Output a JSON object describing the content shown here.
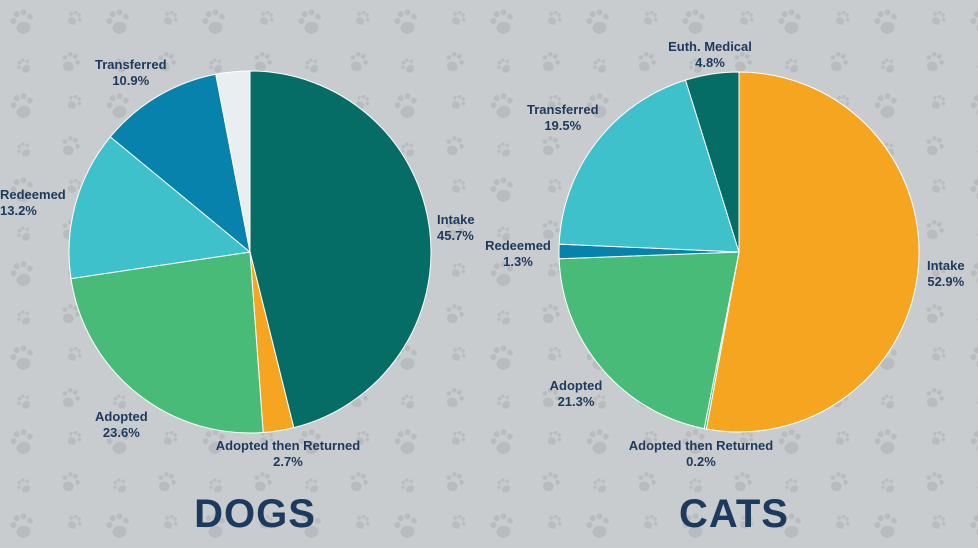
{
  "colors": {
    "background": "#c9ccce",
    "paw_print": "#b9bcbf",
    "text": "#1c3a5e",
    "intake_dogs": "#056d66",
    "intake_cats": "#f5a51f",
    "adopted_then_returned": "#f5a51f",
    "adopted": "#49bb78",
    "redeemed": "#3fc1cc",
    "transferred": "#0782ad",
    "transferred_cats": "#3fc1cc",
    "redeemed_cats": "#0782ad",
    "euth_medical": "#056d66",
    "unlabeled": "#e9eef0"
  },
  "background_icon": "paw-print-icon",
  "chart_data": [
    {
      "type": "pie",
      "title": "DOGS",
      "slices": [
        {
          "label": "Intake",
          "pct_label": "45.7%",
          "value": 45.7,
          "color": "#056d66"
        },
        {
          "label": "Adopted then Returned",
          "pct_label": "2.7%",
          "value": 2.7,
          "color": "#f5a51f"
        },
        {
          "label": "Adopted",
          "pct_label": "23.6%",
          "value": 23.6,
          "color": "#49bb78"
        },
        {
          "label": "Redeemed",
          "pct_label": "13.2%",
          "value": 13.2,
          "color": "#3fc1cc"
        },
        {
          "label": "Transferred",
          "pct_label": "10.9%",
          "value": 10.9,
          "color": "#0782ad"
        },
        {
          "label": "",
          "pct_label": "",
          "value": 3.0,
          "color": "#e9eef0"
        }
      ]
    },
    {
      "type": "pie",
      "title": "CATS",
      "slices": [
        {
          "label": "Intake",
          "pct_label": "52.9%",
          "value": 52.9,
          "color": "#f5a51f"
        },
        {
          "label": "Adopted then Returned",
          "pct_label": "0.2%",
          "value": 0.2,
          "color": "#49bb78"
        },
        {
          "label": "Adopted",
          "pct_label": "21.3%",
          "value": 21.3,
          "color": "#49bb78"
        },
        {
          "label": "Redeemed",
          "pct_label": "1.3%",
          "value": 1.3,
          "color": "#0782ad"
        },
        {
          "label": "Transferred",
          "pct_label": "19.5%",
          "value": 19.5,
          "color": "#3fc1cc"
        },
        {
          "label": "Euth. Medical",
          "pct_label": "4.8%",
          "value": 4.8,
          "color": "#056d66"
        }
      ]
    }
  ]
}
